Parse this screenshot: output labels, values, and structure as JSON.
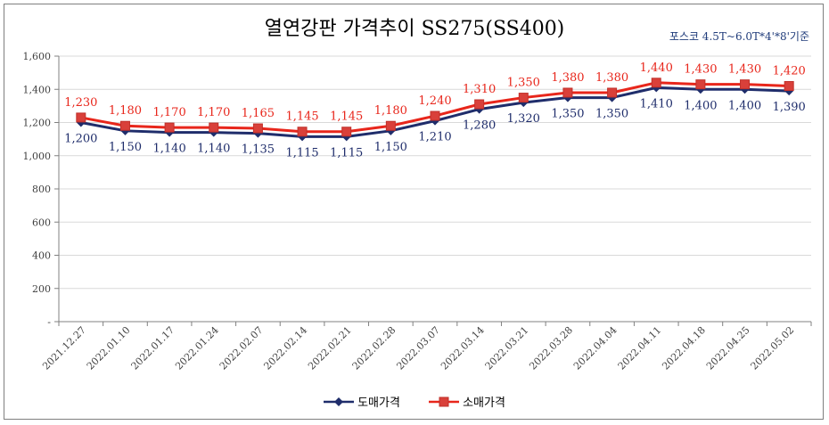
{
  "chart_data": {
    "type": "line",
    "title": "열연강판 가격추이 SS275(SS400)",
    "subtitle": "포스코 4.5T~6.0T*4'*8'기준",
    "x": [
      "2021.12.27",
      "2022.01.10",
      "2022.01.17",
      "2022.01.24",
      "2022.02.07",
      "2022.02.14",
      "2022.02.21",
      "2022.02.28",
      "2022.03.07",
      "2022.03.14",
      "2022.03.21",
      "2022.03.28",
      "2022.04.04",
      "2022.04.11",
      "2022.04.18",
      "2022.04.25",
      "2022.05.02"
    ],
    "y_ticks": [
      "-",
      "200",
      "400",
      "600",
      "800",
      "1,000",
      "1,200",
      "1,400",
      "1,600"
    ],
    "ylim": [
      0,
      1600
    ],
    "series": [
      {
        "name": "도매가격",
        "color": "#1f2d6b",
        "marker": "diamond",
        "values": [
          1200,
          1150,
          1140,
          1140,
          1135,
          1115,
          1115,
          1150,
          1210,
          1280,
          1320,
          1350,
          1350,
          1410,
          1400,
          1400,
          1390
        ],
        "labels": [
          "1,200",
          "1,150",
          "1,140",
          "1,140",
          "1,135",
          "1,115",
          "1,115",
          "1,150",
          "1,210",
          "1,280",
          "1,320",
          "1,350",
          "1,350",
          "1,410",
          "1,400",
          "1,400",
          "1,390"
        ]
      },
      {
        "name": "소매가격",
        "color": "#e8261b",
        "marker": "square",
        "values": [
          1230,
          1180,
          1170,
          1170,
          1165,
          1145,
          1145,
          1180,
          1240,
          1310,
          1350,
          1380,
          1380,
          1440,
          1430,
          1430,
          1420
        ],
        "labels": [
          "1,230",
          "1,180",
          "1,170",
          "1,170",
          "1,165",
          "1,145",
          "1,145",
          "1,180",
          "1,240",
          "1,310",
          "1,350",
          "1,380",
          "1,380",
          "1,440",
          "1,430",
          "1,430",
          "1,420"
        ]
      }
    ],
    "legend_position": "bottom",
    "grid": "horizontal"
  }
}
